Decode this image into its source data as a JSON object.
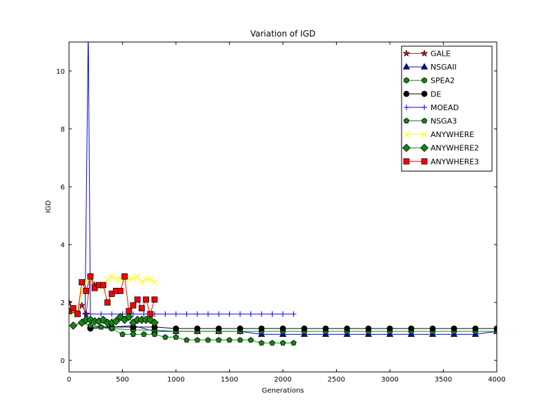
{
  "chart_data": {
    "type": "line",
    "title": "Variation of IGD",
    "xlabel": "Generations",
    "ylabel": "IGD",
    "xlim": [
      0,
      4000
    ],
    "ylim": [
      -0.4,
      11
    ],
    "xticks": [
      0,
      500,
      1000,
      1500,
      2000,
      2500,
      3000,
      3500,
      4000
    ],
    "xtick_labels": [
      "0",
      "500",
      "1000",
      "1500",
      "2000",
      "2500",
      "3000",
      "3500",
      "4000"
    ],
    "yticks": [
      0,
      2,
      4,
      6,
      8,
      10
    ],
    "ytick_labels": [
      "0",
      "2",
      "4",
      "6",
      "8",
      "10"
    ],
    "grid": false,
    "legend_position": "top-right",
    "series": [
      {
        "name": "GALE",
        "color": "#bf1a1a",
        "marker": "star",
        "x": [
          0,
          40,
          80,
          120,
          160,
          200,
          240
        ],
        "y": [
          2.0,
          1.7,
          1.6,
          1.9,
          1.6,
          2.9,
          2.6
        ]
      },
      {
        "name": "NSGAII",
        "color": "#0000cc",
        "marker": "triangle",
        "x": [
          200,
          400,
          600,
          800,
          1000,
          1200,
          1400,
          1600,
          1800,
          2000,
          2200,
          2400,
          2600,
          2800,
          3000,
          3200,
          3400,
          3600,
          3800,
          4000
        ],
        "y": [
          1.2,
          1.15,
          1.2,
          1.0,
          1.0,
          1.0,
          1.0,
          1.0,
          0.9,
          0.9,
          0.9,
          0.9,
          0.9,
          0.9,
          0.9,
          0.9,
          0.9,
          0.9,
          0.9,
          1.0
        ]
      },
      {
        "name": "SPEA2",
        "color": "#118811",
        "marker": "hexagon",
        "x": [
          200,
          400,
          600,
          800,
          1000,
          1200,
          1400,
          1600,
          1800,
          2000,
          2200,
          2400,
          2600,
          2800,
          3000,
          3200,
          3400,
          3600,
          3800,
          4000
        ],
        "y": [
          1.15,
          1.1,
          1.05,
          1.05,
          1.0,
          1.0,
          1.0,
          1.0,
          1.0,
          1.0,
          1.0,
          1.0,
          1.0,
          1.0,
          1.0,
          1.0,
          1.0,
          1.0,
          1.0,
          1.0
        ]
      },
      {
        "name": "DE",
        "color": "#000000",
        "marker": "circle",
        "x": [
          200,
          400,
          600,
          800,
          1000,
          1200,
          1400,
          1600,
          1800,
          2000,
          2200,
          2400,
          2600,
          2800,
          3000,
          3200,
          3400,
          3600,
          3800,
          4000
        ],
        "y": [
          1.1,
          1.15,
          1.15,
          1.15,
          1.1,
          1.1,
          1.1,
          1.1,
          1.1,
          1.1,
          1.1,
          1.1,
          1.1,
          1.1,
          1.1,
          1.1,
          1.1,
          1.1,
          1.1,
          1.1
        ]
      },
      {
        "name": "MOEAD",
        "color": "#0000ee",
        "marker": "plus",
        "x": [
          150,
          180,
          200,
          300,
          400,
          500,
          600,
          700,
          800,
          900,
          1000,
          1100,
          1200,
          1300,
          1400,
          1500,
          1600,
          1700,
          1800,
          1900,
          2000,
          2100
        ],
        "y": [
          1.6,
          11.5,
          1.6,
          1.6,
          1.6,
          1.6,
          1.6,
          1.6,
          1.6,
          1.6,
          1.6,
          1.6,
          1.6,
          1.6,
          1.6,
          1.6,
          1.6,
          1.6,
          1.6,
          1.6,
          1.6,
          1.6
        ]
      },
      {
        "name": "NSGA3",
        "color": "#118811",
        "marker": "pentagon",
        "x": [
          40,
          120,
          200,
          300,
          400,
          500,
          600,
          700,
          800,
          900,
          1000,
          1100,
          1200,
          1300,
          1400,
          1500,
          1600,
          1700,
          1800,
          1900,
          2000,
          2100
        ],
        "y": [
          1.2,
          1.3,
          1.2,
          1.15,
          1.1,
          0.9,
          0.9,
          0.9,
          0.9,
          0.8,
          0.8,
          0.7,
          0.7,
          0.7,
          0.7,
          0.7,
          0.7,
          0.7,
          0.6,
          0.6,
          0.6,
          0.6
        ]
      },
      {
        "name": "ANYWHERE",
        "color": "#ffff00",
        "marker": "x",
        "x": [
          0,
          40,
          80,
          120,
          160,
          200,
          240,
          280,
          320,
          360,
          400,
          440,
          480,
          520,
          560,
          600,
          640,
          680,
          720,
          760,
          800
        ],
        "y": [
          1.6,
          1.7,
          1.6,
          2.4,
          2.7,
          2.8,
          2.5,
          2.6,
          2.5,
          2.8,
          2.9,
          2.8,
          2.8,
          2.8,
          2.8,
          2.8,
          2.9,
          2.7,
          2.8,
          2.8,
          2.7
        ]
      },
      {
        "name": "ANYWHERE2",
        "color": "#118811",
        "marker": "diamond",
        "x": [
          40,
          120,
          160,
          200,
          240,
          280,
          320,
          360,
          400,
          440,
          480,
          520,
          560,
          600,
          640,
          680,
          720,
          760,
          800
        ],
        "y": [
          1.2,
          1.3,
          1.4,
          1.4,
          1.35,
          1.35,
          1.4,
          1.3,
          1.3,
          1.35,
          1.5,
          1.4,
          1.5,
          1.3,
          1.4,
          1.4,
          1.4,
          1.4,
          1.3
        ]
      },
      {
        "name": "ANYWHERE3",
        "color": "#ff0000",
        "marker": "square",
        "x": [
          0,
          40,
          80,
          120,
          160,
          200,
          240,
          280,
          320,
          360,
          400,
          440,
          480,
          520,
          560,
          600,
          640,
          680,
          720,
          760,
          800
        ],
        "y": [
          1.7,
          1.8,
          1.6,
          2.7,
          2.4,
          2.9,
          2.5,
          2.6,
          2.6,
          2.0,
          2.3,
          2.4,
          2.4,
          2.9,
          1.7,
          1.9,
          2.1,
          1.8,
          2.1,
          1.6,
          2.1
        ]
      }
    ]
  }
}
